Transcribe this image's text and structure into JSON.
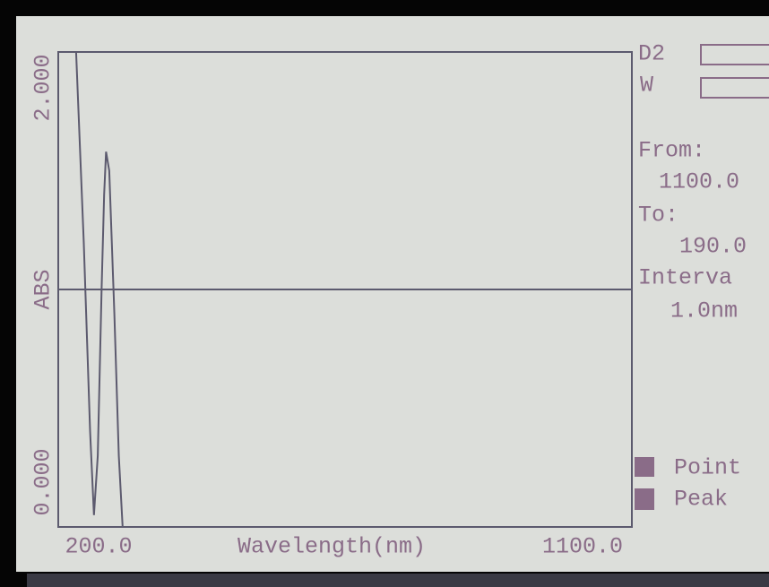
{
  "chart_data": {
    "type": "line",
    "y_label": "ABS",
    "x_label": "Wavelength(nm)",
    "x": [
      200,
      215,
      228,
      240,
      250,
      256,
      262,
      268,
      272,
      275,
      280,
      288,
      295,
      301,
      320,
      600,
      1100
    ],
    "values": [
      2,
      2,
      2,
      1.2,
      0.4,
      0.05,
      0.3,
      1.0,
      1.4,
      1.58,
      1.5,
      0.9,
      0.3,
      0,
      0,
      0,
      0
    ],
    "color": "#5c5a6e",
    "xlim": [
      200,
      1100
    ],
    "ylim": [
      0,
      2
    ],
    "xticks": [
      {
        "value": 200,
        "label": "200.0"
      },
      {
        "value": 1100,
        "label": "1100.0"
      }
    ],
    "yticks": [
      {
        "value": 0,
        "label": "0.000"
      },
      {
        "value": 2,
        "label": "2.000"
      }
    ],
    "reference_line": 1.0
  },
  "panel": {
    "lamps": [
      "D2",
      "W"
    ],
    "from_label": "From:",
    "from_value": "1100.0",
    "to_label": "To:",
    "to_value": "190.0",
    "interval_label": "Interva",
    "interval_value": "1.0nm",
    "keys": [
      "Point",
      "Peak"
    ]
  }
}
